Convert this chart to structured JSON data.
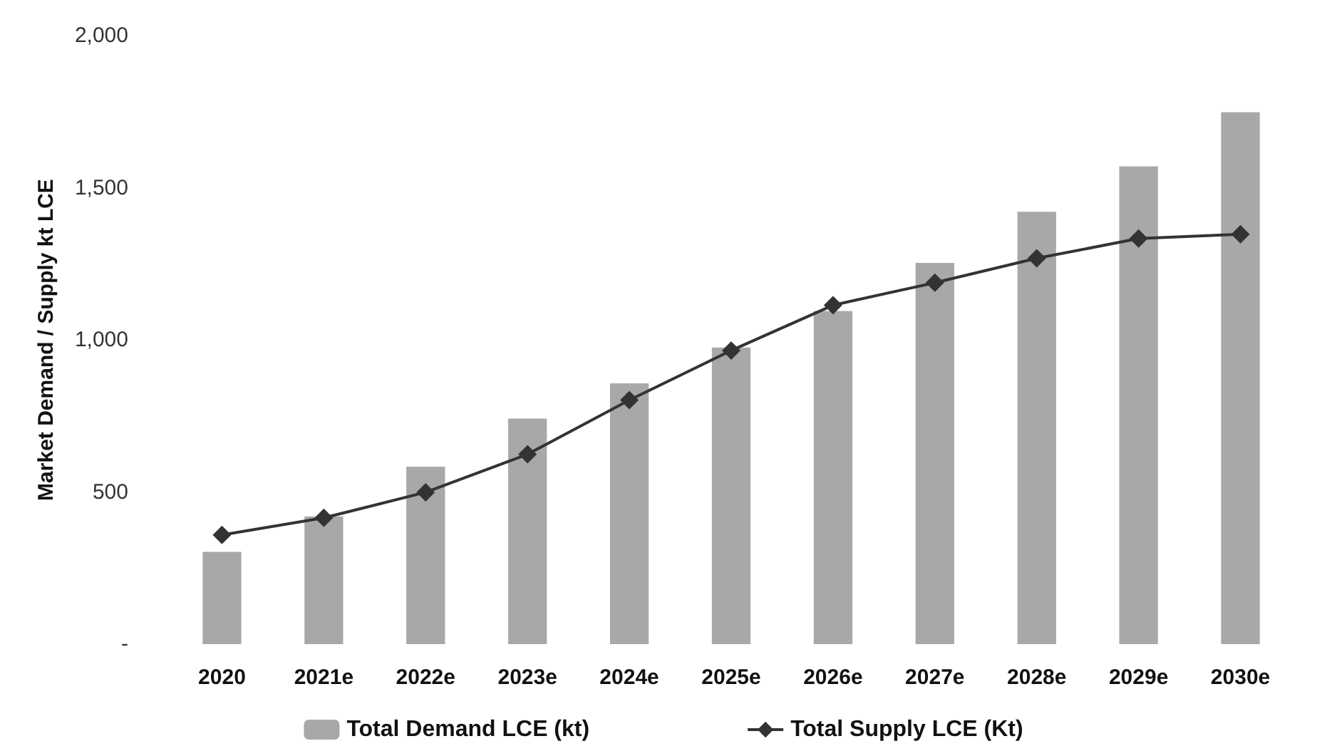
{
  "chart_data": {
    "type": "bar",
    "ylabel": "Market Demand / Supply kt LCE",
    "categories": [
      "2020",
      "2021e",
      "2022e",
      "2023e",
      "2024e",
      "2025e",
      "2026e",
      "2027e",
      "2028e",
      "2029e",
      "2030e"
    ],
    "series": [
      {
        "name": "Total Demand LCE (kt)",
        "color": "#a8a8a8",
        "values": [
          303,
          420,
          583,
          741,
          857,
          975,
          1095,
          1253,
          1421,
          1570,
          1748
        ]
      },
      {
        "name": "Total Supply LCE (Kt)",
        "type": "line",
        "color": "#333333",
        "marker": "diamond",
        "values": [
          359,
          415,
          499,
          624,
          802,
          965,
          1114,
          1188,
          1268,
          1333,
          1347
        ]
      }
    ],
    "ylim": [
      0,
      2000
    ],
    "yticks": [
      {
        "value": 0,
        "label": "-"
      },
      {
        "value": 500,
        "label": "500"
      },
      {
        "value": 1000,
        "label": "1,000"
      },
      {
        "value": 1500,
        "label": "1,500"
      },
      {
        "value": 2000,
        "label": "2,000"
      }
    ],
    "grid": false,
    "legend": "bottom"
  }
}
